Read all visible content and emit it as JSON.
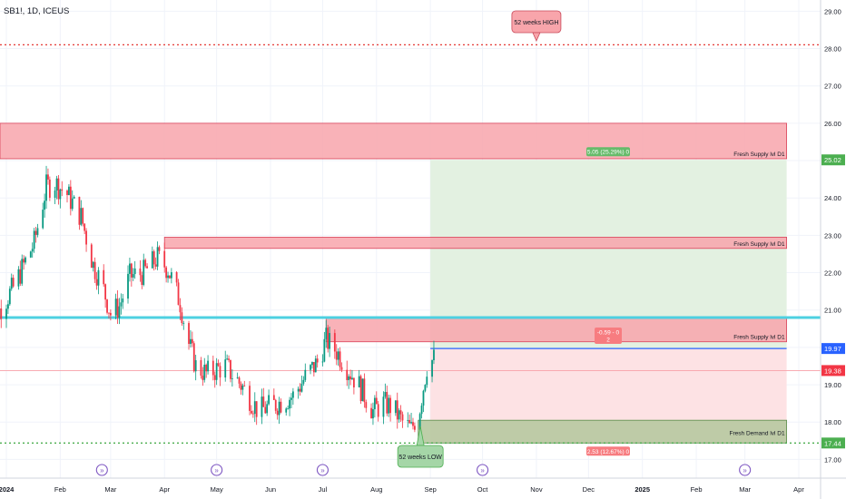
{
  "symbol": "SB1!, 1D, ICEUS",
  "colors": {
    "up": "#089981",
    "down": "#f23645",
    "supply_fill": "#f8a5ab",
    "supply_stroke": "#d9435a",
    "demand_fill": "#b7c9a0",
    "demand_stroke": "#5c8d4a",
    "profit_fill": "#e3f1e1",
    "loss_fill": "#fde2e4",
    "level_line": "#4dd0e1",
    "entry_line": "#2962ff",
    "dotted_level": "#e53935",
    "green_dotted": "#4caf50"
  },
  "chart_data": {
    "type": "candlestick",
    "symbol": "SB1!",
    "interval": "1D",
    "exchange": "ICEUS",
    "ylim": [
      16.5,
      29.3
    ],
    "y_ticks": [
      "29.00",
      "28.00",
      "27.00",
      "26.00",
      "25.00",
      "24.00",
      "23.00",
      "22.00",
      "21.00",
      "20.00",
      "19.00",
      "18.00",
      "17.00"
    ],
    "x_ticks": [
      {
        "label": "2024",
        "date": "2024-01-01"
      },
      {
        "label": "Feb",
        "date": "2024-02-01"
      },
      {
        "label": "Mar",
        "date": "2024-03-01"
      },
      {
        "label": "Apr",
        "date": "2024-04-01"
      },
      {
        "label": "May",
        "date": "2024-05-01"
      },
      {
        "label": "Jun",
        "date": "2024-06-01"
      },
      {
        "label": "Jul",
        "date": "2024-07-01"
      },
      {
        "label": "Aug",
        "date": "2024-08-01"
      },
      {
        "label": "Sep",
        "date": "2024-09-01"
      },
      {
        "label": "Oct",
        "date": "2024-10-01"
      },
      {
        "label": "Nov",
        "date": "2024-11-01"
      },
      {
        "label": "Dec",
        "date": "2024-12-01"
      },
      {
        "label": "2025",
        "date": "2025-01-01"
      },
      {
        "label": "Feb",
        "date": "2025-02-01"
      },
      {
        "label": "Mar",
        "date": "2025-03-01"
      },
      {
        "label": "Apr",
        "date": "2025-04-01"
      }
    ],
    "price_path": [
      [
        "2023-12-20",
        20.4
      ],
      [
        "2024-01-05",
        21.6
      ],
      [
        "2024-01-17",
        22.8
      ],
      [
        "2024-01-24",
        24.3
      ],
      [
        "2024-01-29",
        24.4
      ],
      [
        "2024-02-05",
        24.1
      ],
      [
        "2024-02-13",
        23.5
      ],
      [
        "2024-02-20",
        22.2
      ],
      [
        "2024-02-25",
        21.7
      ],
      [
        "2024-03-01",
        20.9
      ],
      [
        "2024-03-06",
        21.1
      ],
      [
        "2024-03-12",
        21.9
      ],
      [
        "2024-03-20",
        22.0
      ],
      [
        "2024-03-28",
        22.4
      ],
      [
        "2024-04-03",
        22.1
      ],
      [
        "2024-04-10",
        21.2
      ],
      [
        "2024-04-15",
        20.1
      ],
      [
        "2024-04-19",
        19.5
      ],
      [
        "2024-04-25",
        19.3
      ],
      [
        "2024-05-06",
        19.5
      ],
      [
        "2024-05-15",
        19.0
      ],
      [
        "2024-05-25",
        18.3
      ],
      [
        "2024-06-05",
        18.5
      ],
      [
        "2024-06-14",
        18.7
      ],
      [
        "2024-06-21",
        19.2
      ],
      [
        "2024-06-28",
        19.6
      ],
      [
        "2024-07-03",
        20.2
      ],
      [
        "2024-07-09",
        19.9
      ],
      [
        "2024-07-16",
        19.4
      ],
      [
        "2024-07-23",
        18.9
      ],
      [
        "2024-07-30",
        18.3
      ],
      [
        "2024-08-05",
        18.5
      ],
      [
        "2024-08-10",
        18.4
      ],
      [
        "2024-08-16",
        18.0
      ],
      [
        "2024-08-21",
        17.8
      ],
      [
        "2024-08-26",
        18.4
      ],
      [
        "2024-08-30",
        19.5
      ],
      [
        "2024-09-03",
        19.7
      ]
    ],
    "overlays": {
      "level_line": 20.8,
      "supply_zones": [
        {
          "label": "Fresh Supply lvl D1",
          "from": 25.05,
          "to": 26.0,
          "start": "2023-12-20"
        },
        {
          "label": "Fresh Supply lvl D1",
          "from": 22.65,
          "to": 22.95,
          "start": "2024-04-01"
        },
        {
          "label": "Fresh Supply lvl D1",
          "from": 20.15,
          "to": 20.8,
          "start": "2024-07-03"
        }
      ],
      "demand_zone": {
        "label": "Fresh Demand lvl D1",
        "from": 17.44,
        "to": 18.05,
        "start": "2024-08-25"
      },
      "position": {
        "start": "2024-09-01",
        "end": "2025-03-25",
        "entry": 19.97,
        "target": 25.02,
        "stop": 17.44,
        "target_label": "5.05 (25.29%) 0",
        "stop_label": "2.53 (12.67%) 0",
        "entry_label_line1": "-0.59 - 0",
        "entry_label_line2": "2"
      },
      "weeks52_high": {
        "label": "52 weeks HIGH",
        "price": 28.1,
        "date": "2024-11-01"
      },
      "weeks52_low": {
        "label": "52 weeks LOW",
        "price": 17.44,
        "date": "2024-08-20"
      }
    },
    "price_tags": [
      {
        "value": "25.02",
        "color": "#4caf50"
      },
      {
        "value": "19.97",
        "color": "#2962ff"
      },
      {
        "value": "19.38",
        "color": "#f23645"
      },
      {
        "value": "17.44",
        "color": "#4caf50"
      }
    ],
    "event_markers": [
      "2024-02-25",
      "2024-05-01",
      "2024-07-01",
      "2024-10-01",
      "2025-03-01"
    ]
  }
}
